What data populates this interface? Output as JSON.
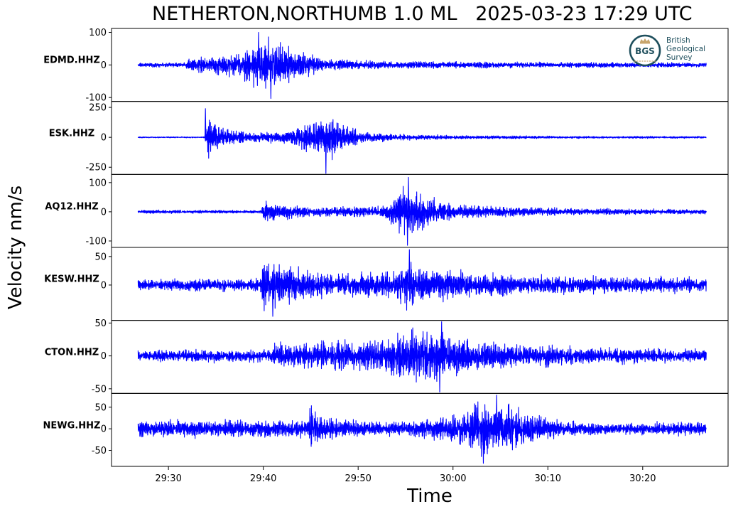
{
  "chart_data": {
    "type": "line",
    "title": "NETHERTON,NORTHUMB 1.0 ML   2025-03-23 17:29 UTC",
    "xlabel": "Time",
    "ylabel": "Velocity nm/s",
    "xlim": [
      "29:24",
      "30:29"
    ],
    "x_ticks": [
      "29:30",
      "29:40",
      "29:50",
      "30:00",
      "30:10",
      "30:20"
    ],
    "grid": false,
    "color": "#0000ff",
    "trace_span": [
      "29:26.8",
      "30:26.7"
    ],
    "panels": [
      {
        "station": "EDMD.HHZ",
        "ylim": [
          -112,
          112
        ],
        "yticks": [
          100,
          0,
          -100
        ],
        "ytick_labels": [
          "100",
          "0",
          "-100"
        ],
        "envelope": [
          [
            0,
            8
          ],
          [
            5,
            8
          ],
          [
            5.3,
            22
          ],
          [
            6.5,
            30
          ],
          [
            9,
            38
          ],
          [
            11,
            48
          ],
          [
            12.8,
            102
          ],
          [
            14.5,
            95
          ],
          [
            15.5,
            78
          ],
          [
            17,
            55
          ],
          [
            19,
            28
          ],
          [
            22,
            18
          ],
          [
            26,
            14
          ],
          [
            32,
            12
          ],
          [
            45,
            10
          ],
          [
            60,
            9
          ]
        ],
        "peaks": [
          [
            "29:40.8",
            -103
          ],
          [
            "29:39.5",
            100
          ]
        ]
      },
      {
        "station": "ESK.HHZ",
        "ylim": [
          -310,
          300
        ],
        "yticks": [
          250,
          0,
          -250
        ],
        "ytick_labels": [
          "250",
          "0",
          "-250"
        ],
        "envelope": [
          [
            0,
            6
          ],
          [
            7,
            6
          ],
          [
            7.3,
            240
          ],
          [
            7.7,
            180
          ],
          [
            8.5,
            110
          ],
          [
            10,
            70
          ],
          [
            12.5,
            55
          ],
          [
            15,
            50
          ],
          [
            17,
            110
          ],
          [
            19,
            200
          ],
          [
            20.5,
            220
          ],
          [
            22,
            120
          ],
          [
            24,
            55
          ],
          [
            28,
            30
          ],
          [
            35,
            18
          ],
          [
            45,
            12
          ],
          [
            60,
            10
          ]
        ],
        "peaks": [
          [
            "29:33.9",
            240
          ],
          [
            "29:46.6",
            -302
          ]
        ]
      },
      {
        "station": "AQ12.HHZ",
        "ylim": [
          -122,
          128
        ],
        "yticks": [
          100,
          0,
          -100
        ],
        "ytick_labels": [
          "100",
          "0",
          "-100"
        ],
        "envelope": [
          [
            0,
            7
          ],
          [
            13,
            7
          ],
          [
            13.2,
            48
          ],
          [
            14,
            38
          ],
          [
            17,
            24
          ],
          [
            22,
            20
          ],
          [
            26,
            24
          ],
          [
            27.8,
            105
          ],
          [
            29.5,
            90
          ],
          [
            31,
            60
          ],
          [
            33,
            35
          ],
          [
            38,
            22
          ],
          [
            45,
            15
          ],
          [
            52,
            12
          ],
          [
            60,
            9
          ]
        ],
        "peaks": [
          [
            "29:55.3",
            118
          ],
          [
            "29:55.2",
            -115
          ]
        ]
      },
      {
        "station": "KESW.HHZ",
        "ylim": [
          -62,
          66
        ],
        "yticks": [
          50,
          0
        ],
        "ytick_labels": [
          "50",
          "0"
        ],
        "envelope": [
          [
            0,
            12
          ],
          [
            12.8,
            14
          ],
          [
            13.2,
            56
          ],
          [
            15,
            45
          ],
          [
            18,
            28
          ],
          [
            22,
            25
          ],
          [
            27.5,
            30
          ],
          [
            28.3,
            62
          ],
          [
            29.5,
            38
          ],
          [
            33,
            30
          ],
          [
            40,
            22
          ],
          [
            50,
            17
          ],
          [
            60,
            16
          ]
        ],
        "peaks": [
          [
            "29:55.4",
            62
          ],
          [
            "29:41.0",
            -55
          ]
        ]
      },
      {
        "station": "CTON.HHZ",
        "ylim": [
          -57,
          54
        ],
        "yticks": [
          50,
          0,
          -50
        ],
        "ytick_labels": [
          "50",
          "0",
          "-50"
        ],
        "envelope": [
          [
            0,
            11
          ],
          [
            14,
            12
          ],
          [
            14.5,
            30
          ],
          [
            17,
            25
          ],
          [
            22,
            26
          ],
          [
            26,
            28
          ],
          [
            27.5,
            45
          ],
          [
            30,
            55
          ],
          [
            32,
            42
          ],
          [
            36,
            27
          ],
          [
            42,
            20
          ],
          [
            50,
            14
          ],
          [
            60,
            12
          ]
        ],
        "peaks": [
          [
            "29:58.6",
            -55
          ],
          [
            "29:58.8",
            52
          ]
        ]
      },
      {
        "station": "NEWG.HHZ",
        "ylim": [
          -87,
          82
        ],
        "yticks": [
          50,
          0,
          -50
        ],
        "ytick_labels": [
          "50",
          "0",
          "-50"
        ],
        "envelope": [
          [
            0,
            25
          ],
          [
            17.9,
            25
          ],
          [
            18.1,
            65
          ],
          [
            19,
            50
          ],
          [
            21,
            30
          ],
          [
            25,
            20
          ],
          [
            30,
            25
          ],
          [
            34,
            50
          ],
          [
            36,
            78
          ],
          [
            38.5,
            70
          ],
          [
            41,
            45
          ],
          [
            45,
            22
          ],
          [
            50,
            16
          ],
          [
            60,
            20
          ]
        ],
        "peaks": [
          [
            "30:03.2",
            -80
          ],
          [
            "30:04.6",
            78
          ]
        ]
      }
    ]
  },
  "logo": {
    "initials": "BGS",
    "lines": [
      "British",
      "Geological",
      "Survey"
    ],
    "colors": {
      "ring": "#1d4e5c",
      "crown": "#c8a66e",
      "text": "#1d4e5c"
    }
  }
}
